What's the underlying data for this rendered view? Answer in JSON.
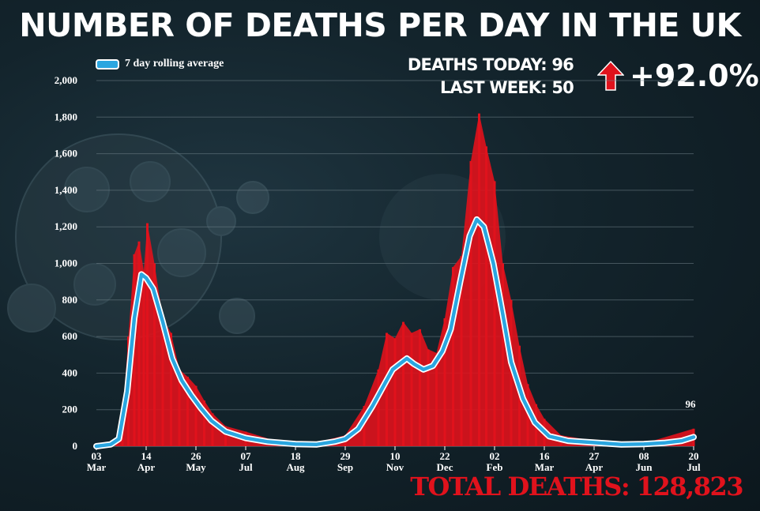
{
  "title": "NUMBER OF DEATHS PER DAY IN THE UK",
  "legend_label": "7 day rolling average",
  "stats": {
    "deaths_today_label": "DEATHS TODAY: 96",
    "last_week_label": "LAST WEEK: 50",
    "change": "+92.0%"
  },
  "total_deaths": "TOTAL DEATHS: 128,823",
  "colors": {
    "bars": "#e0121c",
    "line": "#2aa6e0",
    "line_outline": "#ffffff",
    "arrow": "#e0121c"
  },
  "icons": {
    "change_icon": "up-arrow-icon"
  },
  "chart_data": {
    "type": "bar",
    "title": "NUMBER OF DEATHS PER DAY IN THE UK",
    "xlabel": "",
    "ylabel": "",
    "ylim": [
      0,
      2000
    ],
    "yticks": [
      "0",
      "200",
      "400",
      "600",
      "800",
      "1,000",
      "1,200",
      "1,400",
      "1,600",
      "1,800",
      "2,000"
    ],
    "grid": true,
    "legend": "top-left",
    "x_start": "2020-03-03",
    "x_end": "2021-07-20",
    "xticks": [
      {
        "day": "03",
        "month": "Mar"
      },
      {
        "day": "14",
        "month": "Apr"
      },
      {
        "day": "26",
        "month": "May"
      },
      {
        "day": "07",
        "month": "Jul"
      },
      {
        "day": "18",
        "month": "Aug"
      },
      {
        "day": "29",
        "month": "Sep"
      },
      {
        "day": "10",
        "month": "Nov"
      },
      {
        "day": "22",
        "month": "Dec"
      },
      {
        "day": "02",
        "month": "Feb"
      },
      {
        "day": "16",
        "month": "Mar"
      },
      {
        "day": "27",
        "month": "Apr"
      },
      {
        "day": "08",
        "month": "Jun"
      },
      {
        "day": "20",
        "month": "Jul"
      }
    ],
    "series": [
      {
        "name": "7 day rolling average",
        "type": "line",
        "points": [
          [
            "2020-03-03",
            0
          ],
          [
            "2020-03-15",
            10
          ],
          [
            "2020-03-22",
            40
          ],
          [
            "2020-03-29",
            300
          ],
          [
            "2020-04-04",
            700
          ],
          [
            "2020-04-10",
            940
          ],
          [
            "2020-04-14",
            920
          ],
          [
            "2020-04-20",
            860
          ],
          [
            "2020-04-28",
            680
          ],
          [
            "2020-05-06",
            480
          ],
          [
            "2020-05-14",
            360
          ],
          [
            "2020-05-22",
            280
          ],
          [
            "2020-05-30",
            210
          ],
          [
            "2020-06-08",
            140
          ],
          [
            "2020-06-20",
            80
          ],
          [
            "2020-07-07",
            45
          ],
          [
            "2020-07-25",
            25
          ],
          [
            "2020-08-18",
            12
          ],
          [
            "2020-09-05",
            10
          ],
          [
            "2020-09-20",
            25
          ],
          [
            "2020-09-29",
            40
          ],
          [
            "2020-10-10",
            95
          ],
          [
            "2020-10-22",
            220
          ],
          [
            "2020-11-02",
            350
          ],
          [
            "2020-11-08",
            420
          ],
          [
            "2020-11-14",
            450
          ],
          [
            "2020-11-20",
            480
          ],
          [
            "2020-11-26",
            450
          ],
          [
            "2020-12-04",
            420
          ],
          [
            "2020-12-12",
            440
          ],
          [
            "2020-12-20",
            520
          ],
          [
            "2020-12-27",
            640
          ],
          [
            "2021-01-04",
            900
          ],
          [
            "2021-01-12",
            1150
          ],
          [
            "2021-01-18",
            1240
          ],
          [
            "2021-01-24",
            1200
          ],
          [
            "2021-02-01",
            1000
          ],
          [
            "2021-02-09",
            720
          ],
          [
            "2021-02-16",
            460
          ],
          [
            "2021-02-26",
            260
          ],
          [
            "2021-03-08",
            130
          ],
          [
            "2021-03-20",
            55
          ],
          [
            "2021-04-05",
            30
          ],
          [
            "2021-04-27",
            20
          ],
          [
            "2021-05-20",
            10
          ],
          [
            "2021-06-08",
            12
          ],
          [
            "2021-06-25",
            18
          ],
          [
            "2021-07-10",
            30
          ],
          [
            "2021-07-20",
            50
          ]
        ]
      },
      {
        "name": "Deaths per day",
        "type": "bar",
        "points": [
          [
            "2020-03-20",
            40
          ],
          [
            "2020-03-25",
            150
          ],
          [
            "2020-03-30",
            600
          ],
          [
            "2020-04-04",
            1050
          ],
          [
            "2020-04-08",
            1120
          ],
          [
            "2020-04-12",
            960
          ],
          [
            "2020-04-15",
            1220
          ],
          [
            "2020-04-21",
            1000
          ],
          [
            "2020-04-28",
            700
          ],
          [
            "2020-05-05",
            620
          ],
          [
            "2020-05-12",
            420
          ],
          [
            "2020-05-19",
            380
          ],
          [
            "2020-05-26",
            330
          ],
          [
            "2020-06-02",
            250
          ],
          [
            "2020-06-09",
            180
          ],
          [
            "2020-06-20",
            110
          ],
          [
            "2020-07-07",
            80
          ],
          [
            "2020-08-01",
            30
          ],
          [
            "2020-09-01",
            15
          ],
          [
            "2020-09-29",
            60
          ],
          [
            "2020-10-15",
            220
          ],
          [
            "2020-10-27",
            420
          ],
          [
            "2020-11-03",
            620
          ],
          [
            "2020-11-10",
            590
          ],
          [
            "2020-11-17",
            680
          ],
          [
            "2020-11-24",
            620
          ],
          [
            "2020-12-01",
            640
          ],
          [
            "2020-12-08",
            530
          ],
          [
            "2020-12-15",
            510
          ],
          [
            "2020-12-22",
            700
          ],
          [
            "2020-12-29",
            980
          ],
          [
            "2021-01-05",
            1040
          ],
          [
            "2021-01-13",
            1560
          ],
          [
            "2021-01-20",
            1820
          ],
          [
            "2021-01-26",
            1640
          ],
          [
            "2021-02-02",
            1450
          ],
          [
            "2021-02-09",
            1000
          ],
          [
            "2021-02-16",
            800
          ],
          [
            "2021-02-23",
            550
          ],
          [
            "2021-03-02",
            340
          ],
          [
            "2021-03-09",
            230
          ],
          [
            "2021-03-16",
            150
          ],
          [
            "2021-03-30",
            60
          ],
          [
            "2021-04-27",
            30
          ],
          [
            "2021-06-08",
            15
          ],
          [
            "2021-07-20",
            96
          ]
        ]
      }
    ],
    "annotations": [
      {
        "x": "2021-07-20",
        "y": 96,
        "text": "96"
      }
    ]
  }
}
